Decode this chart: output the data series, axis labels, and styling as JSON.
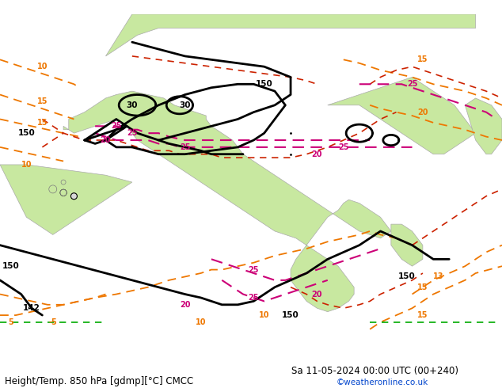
{
  "title_left": "Height/Temp. 850 hPa [gdmp][°C] CMCC",
  "title_right": "Sa 11-05-2024 00:00 UTC (00+240)",
  "watermark": "©weatheronline.co.uk",
  "bg_color": "#d8d8d8",
  "land_color": "#c8e8a0",
  "sea_color": "#d0d0d0",
  "border_color": "#aaaaaa",
  "iso_color": "#000000",
  "temp_pink_color": "#cc0077",
  "temp_red_color": "#cc2200",
  "temp_orange_color": "#ee7700",
  "temp_green_color": "#00aa00",
  "title_fontsize": 8.5,
  "label_fontsize": 7,
  "watermark_color": "#0044cc",
  "figsize": [
    6.34,
    4.9
  ],
  "dpi": 100
}
